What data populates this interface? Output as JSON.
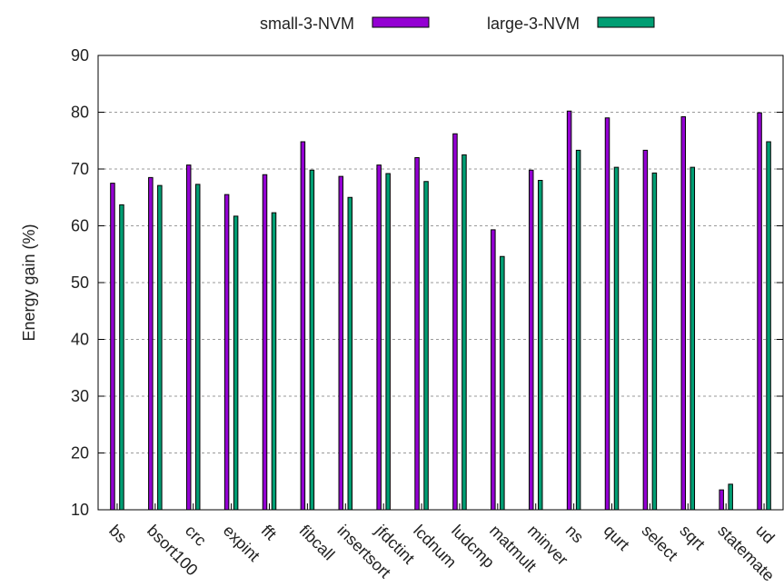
{
  "chart_data": {
    "type": "bar",
    "title": "",
    "xlabel": "",
    "ylabel": "Energy gain (%)",
    "ylim": [
      10,
      90
    ],
    "yticks": [
      10,
      20,
      30,
      40,
      50,
      60,
      70,
      80,
      90
    ],
    "grid": "horizontal dashed",
    "legend_position": "top-center",
    "categories": [
      "bs",
      "bsort100",
      "crc",
      "expint",
      "fft",
      "fibcall",
      "insertsort",
      "jfdctint",
      "lcdnum",
      "ludcmp",
      "matmult",
      "minver",
      "ns",
      "qurt",
      "select",
      "sqrt",
      "statemate",
      "ud"
    ],
    "series": [
      {
        "name": "small-3-NVM",
        "color": "#9400d3",
        "values": [
          67.5,
          68.5,
          70.7,
          65.5,
          69.0,
          74.8,
          68.7,
          70.7,
          72.0,
          76.2,
          59.3,
          69.8,
          80.2,
          79.0,
          73.3,
          79.2,
          13.5,
          79.9
        ]
      },
      {
        "name": "large-3-NVM",
        "color": "#009e73",
        "values": [
          63.7,
          67.1,
          67.3,
          61.7,
          62.3,
          69.8,
          65.0,
          69.2,
          67.8,
          72.5,
          54.6,
          68.0,
          73.3,
          70.3,
          69.3,
          70.3,
          14.5,
          74.8
        ]
      }
    ]
  }
}
